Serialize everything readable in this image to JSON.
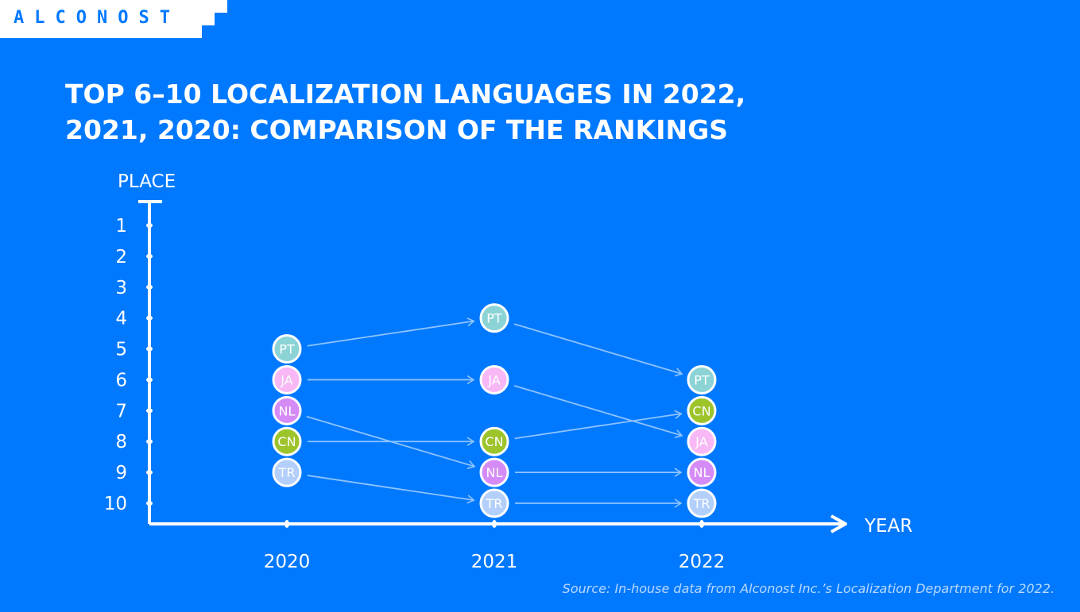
{
  "brand": {
    "logo_text": "ALCONOST"
  },
  "title": "TOP 6–10 LOCALIZATION LANGUAGES IN 2022, 2021, 2020: COMPARISON OF THE RANKINGS",
  "source": "Source: In-house data from Alconost Inc.’s Localization Department for 2022.",
  "chart_data": {
    "type": "scatter",
    "title": "TOP 6–10 LOCALIZATION LANGUAGES IN 2022, 2021, 2020: COMPARISON OF THE RANKINGS",
    "xlabel": "YEAR",
    "ylabel": "PLACE",
    "x": [
      "2020",
      "2021",
      "2022"
    ],
    "y_ticks": [
      1,
      2,
      3,
      4,
      5,
      6,
      7,
      8,
      9,
      10
    ],
    "ylim": [
      1,
      10
    ],
    "y_inverted": true,
    "series": [
      {
        "name": "PT",
        "values": [
          5,
          4,
          6
        ],
        "color": "#8CD3D6"
      },
      {
        "name": "JA",
        "values": [
          6,
          6,
          8
        ],
        "color": "#F7B8F5"
      },
      {
        "name": "NL",
        "values": [
          7,
          9,
          9
        ],
        "color": "#D58BF5"
      },
      {
        "name": "CN",
        "values": [
          8,
          8,
          7
        ],
        "color": "#9DC42B"
      },
      {
        "name": "TR",
        "values": [
          9,
          10,
          10
        ],
        "color": "#B3CFFB"
      }
    ],
    "arrow_color": "#8EC3FF",
    "background": "#0079FF"
  }
}
